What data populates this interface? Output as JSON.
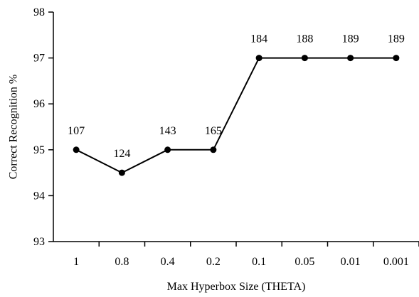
{
  "chart_data": {
    "type": "line",
    "title": "",
    "xlabel": "Max Hyperbox Size (THETA)",
    "ylabel": "Correct Recognition %",
    "categories": [
      "1",
      "0.8",
      "0.4",
      "0.2",
      "0.1",
      "0.05",
      "0.01",
      "0.001"
    ],
    "series": [
      {
        "name": "",
        "values": [
          95,
          94.5,
          95,
          95,
          97,
          97,
          97,
          97
        ]
      }
    ],
    "point_labels": [
      "107",
      "124",
      "143",
      "165",
      "184",
      "188",
      "189",
      "189"
    ],
    "ylim": [
      93,
      98
    ],
    "yticks": [
      "93",
      "94",
      "95",
      "96",
      "97",
      "98"
    ],
    "grid": false,
    "legend": "none",
    "colors": {
      "line": "#000000",
      "marker": "#000000",
      "axis": "#000000"
    }
  }
}
